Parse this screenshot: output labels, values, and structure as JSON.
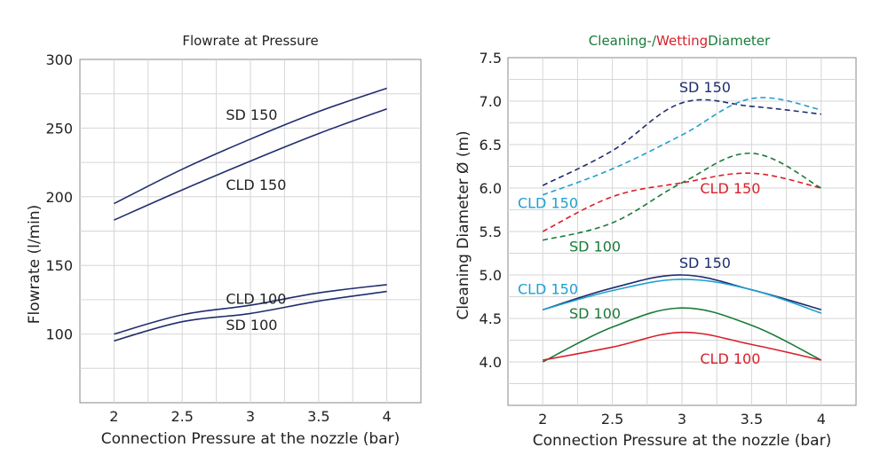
{
  "chart_data": [
    {
      "type": "line",
      "title": "Flowrate at Pressure",
      "xlabel": "Connection Pressure at the nozzle (bar)",
      "ylabel": "Flowrate (l/min)",
      "xlim": [
        1.75,
        4.25
      ],
      "ylim": [
        50,
        300
      ],
      "xticks": [
        "2",
        "2.5",
        "3",
        "3.5",
        "4"
      ],
      "yticks": [
        "300",
        "250",
        "200",
        "150",
        "100"
      ],
      "grid": true,
      "series": [
        {
          "name": "SD 150",
          "color": "#1f2d6e",
          "dash": false,
          "points": [
            [
              2,
              195
            ],
            [
              2.5,
              220
            ],
            [
              3,
              242
            ],
            [
              3.5,
              262
            ],
            [
              4,
              279
            ]
          ]
        },
        {
          "name": "CLD 150",
          "color": "#1f2d6e",
          "dash": false,
          "points": [
            [
              2,
              183
            ],
            [
              2.5,
              205
            ],
            [
              3,
              226
            ],
            [
              3.5,
              246
            ],
            [
              4,
              264
            ]
          ]
        },
        {
          "name": "CLD 100",
          "color": "#1f2d6e",
          "dash": false,
          "points": [
            [
              2,
              100
            ],
            [
              2.5,
              114
            ],
            [
              3,
              121
            ],
            [
              3.5,
              130
            ],
            [
              4,
              136
            ]
          ]
        },
        {
          "name": "SD 100",
          "color": "#1f2d6e",
          "dash": false,
          "points": [
            [
              2,
              95
            ],
            [
              2.5,
              109
            ],
            [
              3,
              115
            ],
            [
              3.5,
              124
            ],
            [
              4,
              131
            ]
          ]
        }
      ],
      "labels": [
        {
          "text": "SD 150",
          "x": 2.82,
          "y": 256,
          "color": "#222222"
        },
        {
          "text": "CLD 150",
          "x": 2.82,
          "y": 205,
          "color": "#222222"
        },
        {
          "text": "CLD 100",
          "x": 2.82,
          "y": 122,
          "color": "#222222"
        },
        {
          "text": "SD 100",
          "x": 2.82,
          "y": 103,
          "color": "#222222"
        }
      ]
    },
    {
      "type": "line",
      "title_parts": [
        {
          "text": "Cleaning-/",
          "color": "#1a7a3a"
        },
        {
          "text": "Wetting",
          "color": "#d8202a"
        },
        {
          "text": "Diameter",
          "color": "#1a7a3a"
        }
      ],
      "xlabel": "Connection Pressure at the nozzle (bar)",
      "ylabel": "Cleaning Diameter Ø (m)",
      "xlim": [
        1.75,
        4.25
      ],
      "ylim": [
        3.5,
        7.5
      ],
      "xticks": [
        "2",
        "2.5",
        "3",
        "3.5",
        "4"
      ],
      "yticks": [
        "7.5",
        "7.0",
        "6.5",
        "6.0",
        "5.5",
        "5.0",
        "4.5",
        "4.0"
      ],
      "grid": true,
      "series": [
        {
          "name": "SD 150 (Wetting)",
          "color": "#1f2d6e",
          "dash": true,
          "points": [
            [
              2,
              6.03
            ],
            [
              2.5,
              6.43
            ],
            [
              3,
              6.98
            ],
            [
              3.5,
              6.94
            ],
            [
              4,
              6.85
            ]
          ]
        },
        {
          "name": "CLD 150 (Wetting)",
          "color": "#1ea0d0",
          "dash": true,
          "points": [
            [
              2,
              5.92
            ],
            [
              2.5,
              6.22
            ],
            [
              3,
              6.61
            ],
            [
              3.5,
              7.03
            ],
            [
              4,
              6.9
            ]
          ]
        },
        {
          "name": "CLD 150 (Wetting) red",
          "color": "#d8202a",
          "dash": true,
          "points": [
            [
              2,
              5.5
            ],
            [
              2.5,
              5.9
            ],
            [
              3,
              6.06
            ],
            [
              3.5,
              6.17
            ],
            [
              4,
              6.0
            ]
          ]
        },
        {
          "name": "SD 100 (Wetting)",
          "color": "#1a7a3a",
          "dash": true,
          "points": [
            [
              2,
              5.4
            ],
            [
              2.5,
              5.6
            ],
            [
              3,
              6.06
            ],
            [
              3.5,
              6.4
            ],
            [
              4,
              6.0
            ]
          ]
        },
        {
          "name": "SD 150 (Cleaning)",
          "color": "#1f2d6e",
          "dash": false,
          "points": [
            [
              2,
              4.6
            ],
            [
              2.5,
              4.85
            ],
            [
              3,
              5.0
            ],
            [
              3.5,
              4.83
            ],
            [
              4,
              4.6
            ]
          ]
        },
        {
          "name": "CLD 150 (Cleaning)",
          "color": "#1ea0d0",
          "dash": false,
          "points": [
            [
              2,
              4.6
            ],
            [
              2.5,
              4.82
            ],
            [
              3,
              4.95
            ],
            [
              3.5,
              4.83
            ],
            [
              4,
              4.56
            ]
          ]
        },
        {
          "name": "SD 100 (Cleaning)",
          "color": "#1a7a3a",
          "dash": false,
          "points": [
            [
              2,
              4.0
            ],
            [
              2.5,
              4.4
            ],
            [
              3,
              4.62
            ],
            [
              3.5,
              4.42
            ],
            [
              4,
              4.02
            ]
          ]
        },
        {
          "name": "CLD 100 (Cleaning)",
          "color": "#d8202a",
          "dash": false,
          "points": [
            [
              2,
              4.02
            ],
            [
              2.5,
              4.17
            ],
            [
              3,
              4.34
            ],
            [
              3.5,
              4.2
            ],
            [
              4,
              4.02
            ]
          ]
        }
      ],
      "labels": [
        {
          "text": "SD 150",
          "x": 2.98,
          "y": 7.1,
          "color": "#1f2d6e"
        },
        {
          "text": "CLD 150",
          "x": 1.82,
          "y": 5.77,
          "color": "#1ea0d0"
        },
        {
          "text": "CLD 150",
          "x": 3.13,
          "y": 5.94,
          "color": "#d8202a"
        },
        {
          "text": "SD 100",
          "x": 2.19,
          "y": 5.27,
          "color": "#1a7a3a"
        },
        {
          "text": "SD 150",
          "x": 2.98,
          "y": 5.08,
          "color": "#1f2d6e"
        },
        {
          "text": "CLD 150",
          "x": 1.82,
          "y": 4.78,
          "color": "#1ea0d0"
        },
        {
          "text": "SD 100",
          "x": 2.19,
          "y": 4.5,
          "color": "#1a7a3a"
        },
        {
          "text": "CLD 100",
          "x": 3.13,
          "y": 3.98,
          "color": "#d8202a"
        }
      ]
    }
  ]
}
